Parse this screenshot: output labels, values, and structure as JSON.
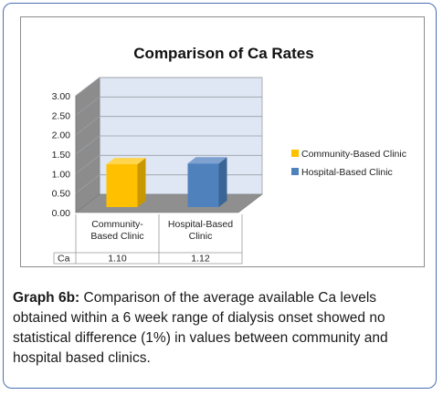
{
  "chart_data": {
    "type": "bar",
    "title": "Comparison of Ca Rates",
    "categories": [
      "Community-Based Clinic",
      "Hospital-Based Clinic"
    ],
    "category_lines": [
      [
        "Community-",
        "Based Clinic"
      ],
      [
        "Hospital-Based",
        "Clinic"
      ]
    ],
    "series": [
      {
        "name": "Ca",
        "values": [
          1.1,
          1.12
        ],
        "value_labels": [
          "1.10",
          "1.12"
        ]
      }
    ],
    "bar_colors": [
      "#ffc000",
      "#4f81bd"
    ],
    "legend": {
      "position": "right",
      "entries": [
        "Community-Based Clinic",
        "Hospital-Based Clinic"
      ]
    },
    "ylim": [
      0,
      3.0
    ],
    "yticks": [
      "0.00",
      "0.50",
      "1.00",
      "1.50",
      "2.00",
      "2.50",
      "3.00"
    ],
    "grid": true,
    "data_table": true,
    "style": "3d-column"
  },
  "caption": {
    "label": "Graph 6b:",
    "text": "Comparison of the average available Ca levels obtained within a 6 week range of dialysis onset showed no statistical difference (1%) in values between community and hospital based clinics."
  }
}
